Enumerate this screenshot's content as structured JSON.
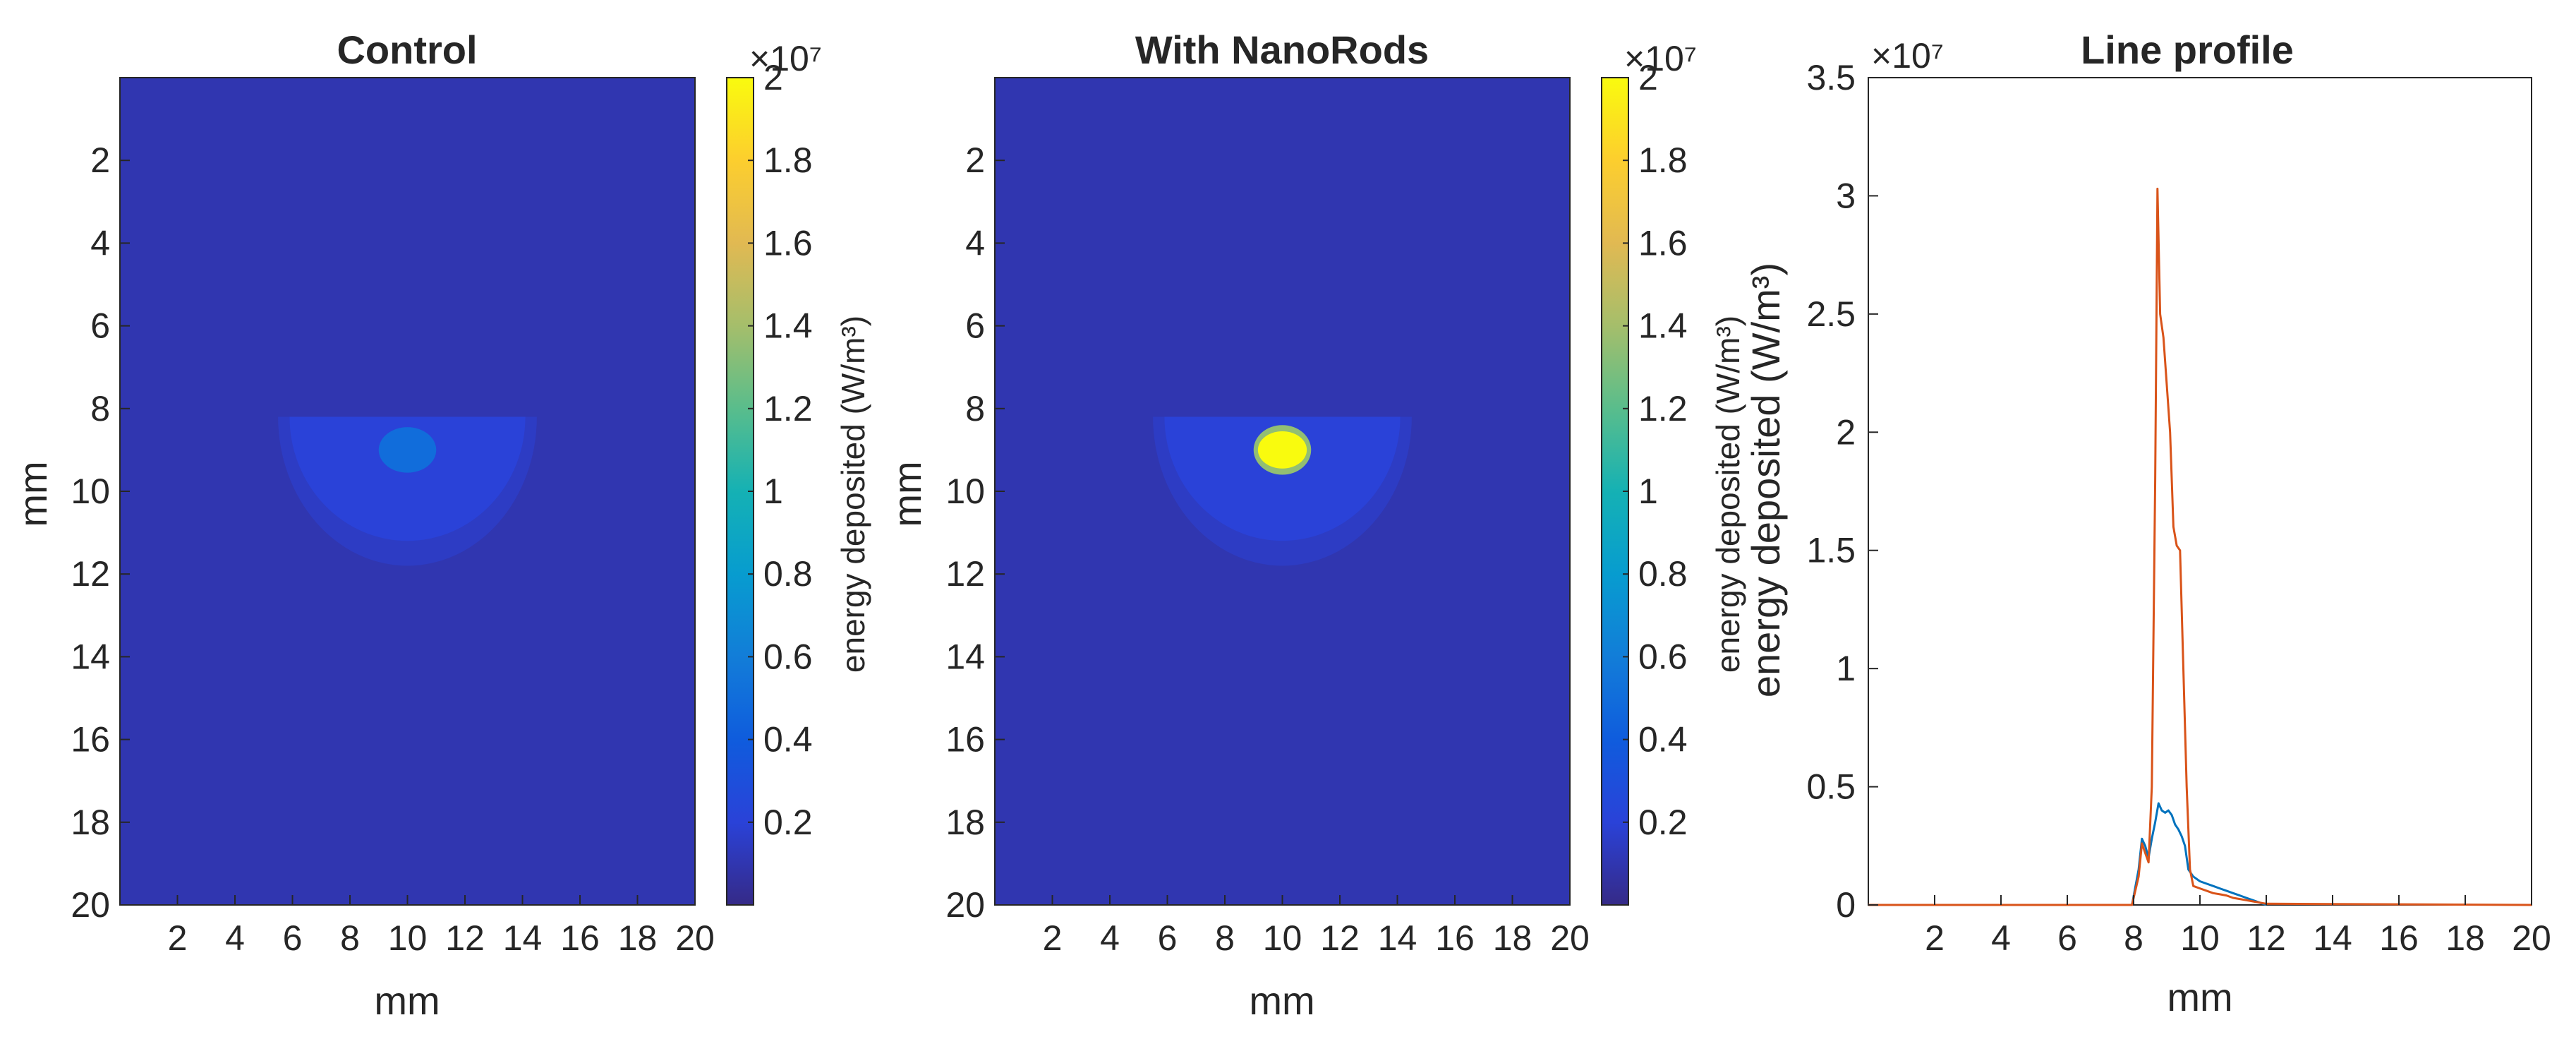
{
  "chart_data": [
    {
      "type": "heatmap",
      "title": "Control",
      "xlabel": "mm",
      "ylabel": "mm",
      "xlim": [
        0,
        20
      ],
      "ylim": [
        0,
        20
      ],
      "x_ticks": [
        "2",
        "4",
        "6",
        "8",
        "10",
        "12",
        "14",
        "16",
        "18",
        "20"
      ],
      "y_ticks": [
        "2",
        "4",
        "6",
        "8",
        "10",
        "12",
        "14",
        "16",
        "18",
        "20"
      ],
      "background_value": 0.1,
      "features": [
        {
          "name": "outer lobe",
          "center": [
            10,
            8.2
          ],
          "radius_x": 4.5,
          "radius_y": 3.6,
          "value": 0.15
        },
        {
          "name": "half disc",
          "center": [
            10,
            8.2
          ],
          "radius_x": 4.1,
          "radius_y": 3.0,
          "value": 0.2
        },
        {
          "name": "core ellipse",
          "center": [
            10,
            9.0
          ],
          "radius_x": 1.0,
          "radius_y": 0.55,
          "value": 0.5
        }
      ],
      "colorbar": {
        "label": "energy deposited  (W/m³)",
        "exponent": "×10⁷",
        "range": [
          0,
          2
        ],
        "ticks": [
          "0.2",
          "0.4",
          "0.6",
          "0.8",
          "1",
          "1.2",
          "1.4",
          "1.6",
          "1.8",
          "2"
        ],
        "colormap": "parula"
      }
    },
    {
      "type": "heatmap",
      "title": "With NanoRods",
      "xlabel": "mm",
      "ylabel": "mm",
      "xlim": [
        0,
        20
      ],
      "ylim": [
        0,
        20
      ],
      "x_ticks": [
        "2",
        "4",
        "6",
        "8",
        "10",
        "12",
        "14",
        "16",
        "18",
        "20"
      ],
      "y_ticks": [
        "2",
        "4",
        "6",
        "8",
        "10",
        "12",
        "14",
        "16",
        "18",
        "20"
      ],
      "background_value": 0.1,
      "features": [
        {
          "name": "outer lobe",
          "center": [
            10,
            8.2
          ],
          "radius_x": 4.5,
          "radius_y": 3.6,
          "value": 0.15
        },
        {
          "name": "half disc",
          "center": [
            10,
            8.2
          ],
          "radius_x": 4.1,
          "radius_y": 3.0,
          "value": 0.2
        },
        {
          "name": "core rim",
          "center": [
            10,
            9.0
          ],
          "radius_x": 1.0,
          "radius_y": 0.6,
          "value": 1.35
        },
        {
          "name": "core ellipse",
          "center": [
            10,
            9.0
          ],
          "radius_x": 0.85,
          "radius_y": 0.45,
          "value": 2.0
        }
      ],
      "colorbar": {
        "label": "energy deposited  (W/m³)",
        "label_overlay": "energy deposited  (W/m³)",
        "exponent": "×10⁷",
        "range": [
          0,
          2
        ],
        "ticks": [
          "0.2",
          "0.4",
          "0.6",
          "0.8",
          "1",
          "1.2",
          "1.4",
          "1.6",
          "1.8",
          "2"
        ],
        "colormap": "parula"
      }
    },
    {
      "type": "line",
      "title": "Line profile",
      "xlabel": "mm",
      "ylabel": "",
      "y_exponent": "×10⁷",
      "xlim": [
        0,
        20
      ],
      "ylim": [
        0,
        3.5
      ],
      "x_ticks": [
        "2",
        "4",
        "6",
        "8",
        "10",
        "12",
        "14",
        "16",
        "18",
        "20"
      ],
      "y_ticks": [
        "0",
        "0.5",
        "1",
        "1.5",
        "2",
        "2.5",
        "3",
        "3.5"
      ],
      "grid": false,
      "series": [
        {
          "color": "#0072BD",
          "x": [
            0,
            7.95,
            8.15,
            8.25,
            8.35,
            8.45,
            8.55,
            8.65,
            8.75,
            8.85,
            8.95,
            9.05,
            9.15,
            9.25,
            9.35,
            9.45,
            9.55,
            9.65,
            9.8,
            10.0,
            10.2,
            10.4,
            10.6,
            10.8,
            11.0,
            11.2,
            11.4,
            11.6,
            11.8,
            12.0
          ],
          "values": [
            0,
            0,
            0.15,
            0.28,
            0.25,
            0.2,
            0.28,
            0.35,
            0.43,
            0.4,
            0.39,
            0.4,
            0.38,
            0.34,
            0.32,
            0.29,
            0.25,
            0.15,
            0.12,
            0.1,
            0.09,
            0.08,
            0.07,
            0.06,
            0.05,
            0.04,
            0.03,
            0.02,
            0.01,
            0.0
          ]
        },
        {
          "color": "#D95319",
          "x": [
            0,
            7.95,
            8.15,
            8.25,
            8.35,
            8.45,
            8.55,
            8.65,
            8.72,
            8.8,
            8.9,
            9.0,
            9.1,
            9.2,
            9.3,
            9.4,
            9.5,
            9.6,
            9.7,
            9.8,
            10.0,
            10.2,
            10.4,
            10.6,
            10.8,
            11.0,
            11.2,
            11.4,
            11.6,
            11.8,
            12.0,
            20
          ],
          "values": [
            0,
            0,
            0.12,
            0.26,
            0.22,
            0.18,
            0.5,
            1.8,
            3.03,
            2.5,
            2.4,
            2.2,
            2.0,
            1.6,
            1.52,
            1.5,
            1.0,
            0.5,
            0.15,
            0.08,
            0.07,
            0.06,
            0.05,
            0.045,
            0.04,
            0.03,
            0.025,
            0.02,
            0.015,
            0.01,
            0.005,
            0
          ]
        }
      ]
    }
  ]
}
